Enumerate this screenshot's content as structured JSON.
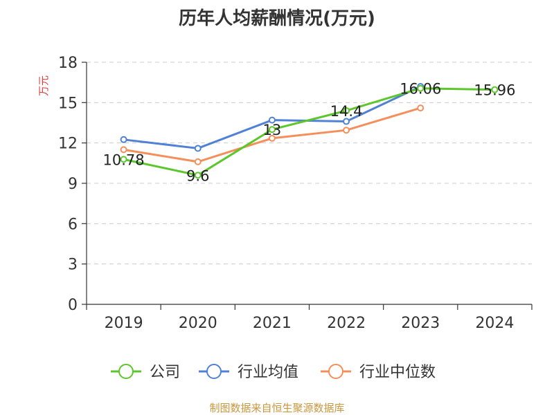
{
  "chart_data": {
    "type": "line",
    "title": "历年人均薪酬情况(万元)",
    "ylabel": "万元",
    "categories": [
      "2019",
      "2020",
      "2021",
      "2022",
      "2023",
      "2024"
    ],
    "ylim": [
      0,
      18
    ],
    "yticks": [
      0,
      3,
      6,
      9,
      12,
      15,
      18
    ],
    "grid": true,
    "legend_position": "bottom",
    "series": [
      {
        "name": "公司",
        "color": "#5cc72b",
        "values": [
          10.78,
          9.6,
          13,
          14.4,
          16.06,
          15.96
        ],
        "labels": [
          "10.78",
          "9.6",
          "13",
          "14.4",
          "16.06",
          "15.96"
        ]
      },
      {
        "name": "行业均值",
        "color": "#4f81d6",
        "values": [
          12.25,
          11.6,
          13.7,
          13.6,
          16.2,
          null
        ]
      },
      {
        "name": "行业中位数",
        "color": "#f58e5a",
        "values": [
          11.5,
          10.6,
          12.35,
          12.95,
          14.6,
          null
        ]
      }
    ]
  },
  "colors": {
    "axis": "#333333",
    "grid": "#cccccc",
    "ylabel": "#e03c3c",
    "source": "#c8963c"
  },
  "source_text": "制图数据来自恒生聚源数据库"
}
